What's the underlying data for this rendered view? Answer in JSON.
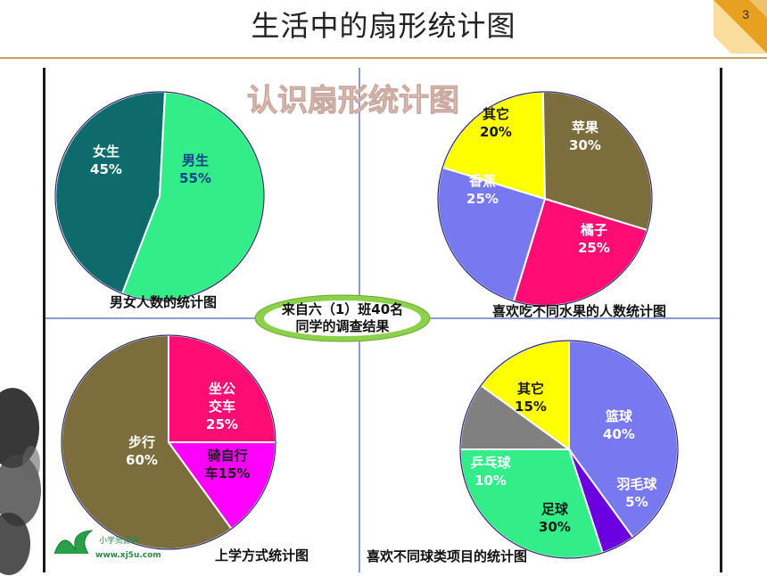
{
  "slide": {
    "title": "生活中的扇形统计图",
    "page_number": "3"
  },
  "banner": {
    "text": "认识扇形统计图"
  },
  "center_badge": {
    "line1": "来自六（1）班40名",
    "line2": "同学的调查结果"
  },
  "watermark": {
    "line1": "小学资源网",
    "line2": "www.xj5u.com"
  },
  "chart_data": [
    {
      "type": "pie",
      "title": "男女人数的统计图",
      "categories": [
        "女生",
        "男生"
      ],
      "values": [
        45,
        55
      ],
      "labels": [
        "45%",
        "55%"
      ],
      "colors": [
        "#0f6b6b",
        "#33ee88"
      ]
    },
    {
      "type": "pie",
      "title": "喜欢吃不同水果的人数统计图",
      "categories": [
        "其它",
        "苹果",
        "橘子",
        "香蕉"
      ],
      "values": [
        20,
        30,
        25,
        25
      ],
      "labels": [
        "20%",
        "30%",
        "25%",
        "25%"
      ],
      "colors": [
        "#ffff00",
        "#7b6e3c",
        "#ff0d75",
        "#7878f0"
      ]
    },
    {
      "type": "pie",
      "title": "上学方式统计图",
      "categories": [
        "坐公交车",
        "骑自行车",
        "步行"
      ],
      "label_lines": [
        [
          "坐公",
          "交车"
        ],
        [
          "骑自行",
          "车15%"
        ],
        [
          "步行"
        ]
      ],
      "values": [
        25,
        15,
        60
      ],
      "labels": [
        "25%",
        "",
        "60%"
      ],
      "colors": [
        "#ff0d75",
        "#ff00ff",
        "#7b6e3c"
      ]
    },
    {
      "type": "pie",
      "title": "喜欢不同球类项目的统计图",
      "categories": [
        "篮球",
        "羽毛球",
        "足球",
        "乒乓球",
        "其它"
      ],
      "values": [
        40,
        5,
        30,
        10,
        15
      ],
      "labels": [
        "40%",
        "5%",
        "30%",
        "10%",
        "15%"
      ],
      "colors": [
        "#7878f0",
        "#6a00e0",
        "#33ee88",
        "#808080",
        "#ffff00"
      ]
    }
  ]
}
